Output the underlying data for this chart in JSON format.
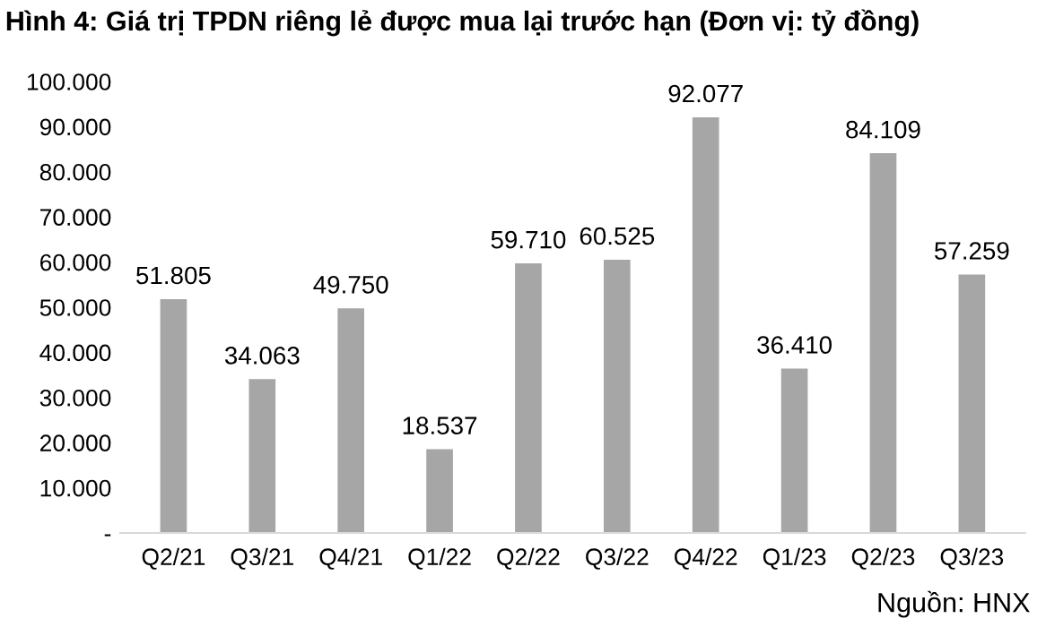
{
  "chart_data": {
    "type": "bar",
    "title": "Hình 4: Giá trị TPDN riêng lẻ được mua lại trước hạn (Đơn vị: tỷ đồng)",
    "categories": [
      "Q2/21",
      "Q3/21",
      "Q4/21",
      "Q1/22",
      "Q2/22",
      "Q3/22",
      "Q4/22",
      "Q1/23",
      "Q2/23",
      "Q3/23"
    ],
    "values": [
      51805,
      34063,
      49750,
      18537,
      59710,
      60525,
      92077,
      36410,
      84109,
      57259
    ],
    "value_labels": [
      "51.805",
      "34.063",
      "49.750",
      "18.537",
      "59.710",
      "60.525",
      "92.077",
      "36.410",
      "84.109",
      "57.259"
    ],
    "color": "#a6a6a6",
    "ylim": [
      0,
      100000
    ],
    "yticks": [
      {
        "value": 0,
        "label": "-"
      },
      {
        "value": 10000,
        "label": "10.000"
      },
      {
        "value": 20000,
        "label": "20.000"
      },
      {
        "value": 30000,
        "label": "30.000"
      },
      {
        "value": 40000,
        "label": "40.000"
      },
      {
        "value": 50000,
        "label": "50.000"
      },
      {
        "value": 60000,
        "label": "60.000"
      },
      {
        "value": 70000,
        "label": "70.000"
      },
      {
        "value": 80000,
        "label": "80.000"
      },
      {
        "value": 90000,
        "label": "90.000"
      },
      {
        "value": 100000,
        "label": "100.000"
      }
    ],
    "grid": false,
    "annotations": [
      "Nguồn: HNX"
    ]
  }
}
